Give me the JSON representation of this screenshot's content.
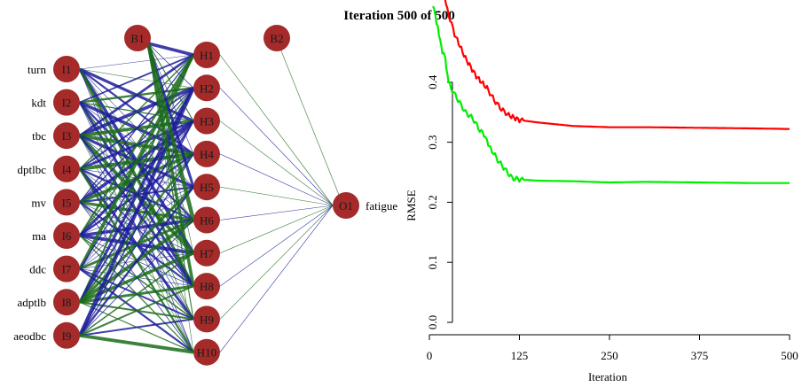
{
  "title": "Iteration 500 of 500",
  "colors": {
    "node_fill": "#a52a2a",
    "positive_weight": "#1a6b1a",
    "negative_weight": "#1c1c9c",
    "train_line": "#ff0000",
    "test_line": "#00ee00"
  },
  "network": {
    "inputs": [
      {
        "id": "I1",
        "var": "turn"
      },
      {
        "id": "I2",
        "var": "kdt"
      },
      {
        "id": "I3",
        "var": "tbc"
      },
      {
        "id": "I4",
        "var": "dptlbc"
      },
      {
        "id": "I5",
        "var": "mv"
      },
      {
        "id": "I6",
        "var": "ma"
      },
      {
        "id": "I7",
        "var": "ddc"
      },
      {
        "id": "I8",
        "var": "adptlb"
      },
      {
        "id": "I9",
        "var": "aeodbc"
      }
    ],
    "hidden": [
      "H1",
      "H2",
      "H3",
      "H4",
      "H5",
      "H6",
      "H7",
      "H8",
      "H9",
      "H10"
    ],
    "biases": [
      "B1",
      "B2"
    ],
    "output": {
      "id": "O1",
      "var": "fatigue"
    }
  },
  "chart_data": {
    "type": "line",
    "xlabel": "Iteration",
    "ylabel": "RMSE",
    "xlim": [
      0,
      500
    ],
    "ylim": [
      0,
      0.5
    ],
    "xticks": [
      0,
      125,
      250,
      375,
      500
    ],
    "yticks": [
      0.0,
      0.1,
      0.2,
      0.3,
      0.4
    ],
    "ytick_labels": [
      "0.0",
      "0.1",
      "0.2",
      "0.3",
      "0.4"
    ],
    "series": [
      {
        "color": "#ff0000",
        "x": [
          20,
          25,
          35,
          50,
          65,
          80,
          90,
          100,
          110,
          125,
          150,
          200,
          250,
          300,
          375,
          450,
          500
        ],
        "y": [
          0.55,
          0.52,
          0.48,
          0.44,
          0.41,
          0.39,
          0.37,
          0.355,
          0.345,
          0.337,
          0.333,
          0.327,
          0.325,
          0.325,
          0.324,
          0.323,
          0.322
        ]
      },
      {
        "color": "#00ee00",
        "x": [
          5,
          10,
          15,
          18,
          22,
          25,
          30,
          40,
          50,
          60,
          70,
          78,
          80,
          85,
          95,
          105,
          115,
          125,
          150,
          200,
          250,
          300,
          375,
          450,
          500
        ],
        "y": [
          0.53,
          0.5,
          0.47,
          0.45,
          0.44,
          0.41,
          0.39,
          0.37,
          0.35,
          0.34,
          0.32,
          0.31,
          0.3,
          0.29,
          0.27,
          0.255,
          0.24,
          0.238,
          0.236,
          0.235,
          0.233,
          0.234,
          0.233,
          0.232,
          0.232
        ]
      }
    ]
  }
}
